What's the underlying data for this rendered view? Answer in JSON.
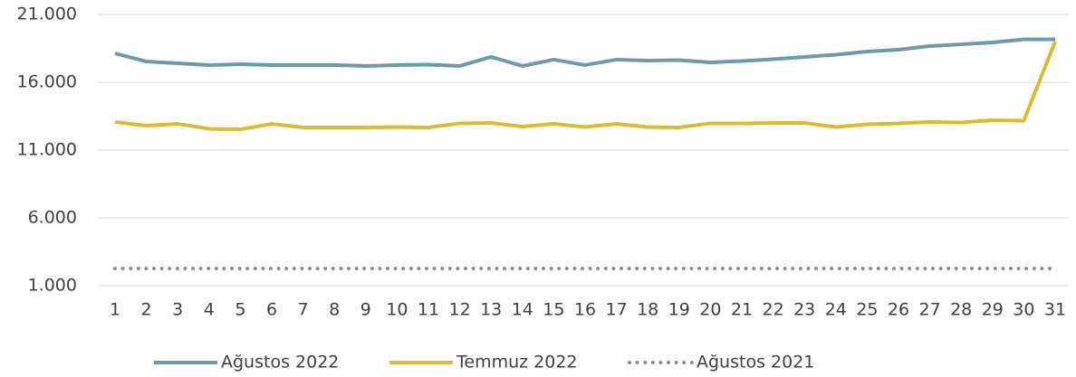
{
  "chart_data": {
    "type": "line",
    "categories": [
      "1",
      "2",
      "3",
      "4",
      "5",
      "6",
      "7",
      "8",
      "9",
      "10",
      "11",
      "12",
      "13",
      "14",
      "15",
      "16",
      "17",
      "18",
      "19",
      "20",
      "21",
      "22",
      "23",
      "24",
      "25",
      "26",
      "27",
      "28",
      "29",
      "30",
      "31"
    ],
    "series": [
      {
        "name": "Ağustos 2022",
        "color": "#6b9ba7",
        "style": "solid",
        "values": [
          18130,
          17530,
          17400,
          17270,
          17330,
          17270,
          17270,
          17270,
          17200,
          17270,
          17300,
          17200,
          17870,
          17200,
          17670,
          17270,
          17670,
          17600,
          17630,
          17470,
          17570,
          17700,
          17870,
          18030,
          18270,
          18400,
          18670,
          18800,
          18930,
          19170,
          19170
        ]
      },
      {
        "name": "Temmuz 2022",
        "color": "#dcbb2e",
        "style": "solid",
        "values": [
          13070,
          12800,
          12930,
          12570,
          12530,
          12930,
          12670,
          12670,
          12670,
          12700,
          12670,
          12970,
          13000,
          12730,
          12930,
          12700,
          12930,
          12700,
          12670,
          12970,
          12970,
          13000,
          13000,
          12700,
          12900,
          12970,
          13070,
          13030,
          13200,
          13170,
          19000
        ]
      },
      {
        "name": "Ağustos 2021",
        "color": "#8c8c8c",
        "style": "dotted",
        "values": [
          2270,
          2270,
          2270,
          2270,
          2270,
          2270,
          2270,
          2270,
          2270,
          2270,
          2270,
          2270,
          2270,
          2270,
          2270,
          2270,
          2270,
          2270,
          2270,
          2270,
          2270,
          2270,
          2270,
          2270,
          2270,
          2270,
          2270,
          2270,
          2270,
          2270,
          2270
        ]
      }
    ],
    "ylim": [
      1000,
      21000
    ],
    "yticks": [
      {
        "value": 1000,
        "label": "1.000"
      },
      {
        "value": 6000,
        "label": "6.000"
      },
      {
        "value": 11000,
        "label": "11.000"
      },
      {
        "value": 16000,
        "label": "16.000"
      },
      {
        "value": 21000,
        "label": "21.000"
      }
    ],
    "grid": true,
    "legend": "bottom"
  }
}
